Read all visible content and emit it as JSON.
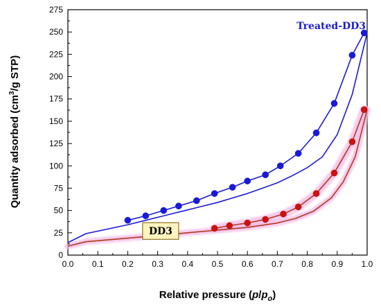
{
  "chart_data": {
    "type": "line",
    "title": "",
    "xlabel": "Relative pressure (p/po)",
    "xlabel_parts": {
      "prefix": "Relative pressure (",
      "p": "p",
      "slash": "/",
      "po_main": "p",
      "po_sub": "o",
      "suffix": ")"
    },
    "ylabel": "Quantity adsorbed (cm3/g STP)",
    "ylabel_parts": {
      "prefix": "Quantity adsorbed (cm",
      "sup": "3",
      "suffix": "/g STP)"
    },
    "xlim": [
      0.0,
      1.0
    ],
    "ylim": [
      0,
      275
    ],
    "x_ticks": [
      0.0,
      0.1,
      0.2,
      0.3,
      0.4,
      0.5,
      0.6,
      0.7,
      0.8,
      0.9,
      1.0
    ],
    "x_tick_labels": [
      "0.0",
      "0.1",
      "0.2",
      "0.3",
      "0.4",
      "0.5",
      "0.6",
      "0.7",
      "0.8",
      "0.9",
      "1.0"
    ],
    "y_ticks": [
      0,
      25,
      50,
      75,
      100,
      125,
      150,
      175,
      200,
      225,
      250,
      275
    ],
    "y_tick_labels": [
      "0",
      "25",
      "50",
      "75",
      "100",
      "125",
      "150",
      "175",
      "200",
      "225",
      "250",
      "275"
    ],
    "grid": false,
    "series": [
      {
        "name": "Treated-DD3",
        "color": "#1a1ad6",
        "marker_color": "#1a1ad6",
        "label_style": "plain",
        "label_at": [
          0.88,
          257
        ],
        "adsorption": {
          "x": [
            0.0,
            0.06,
            0.2,
            0.26,
            0.32,
            0.38,
            0.44,
            0.5,
            0.55,
            0.6,
            0.65,
            0.7,
            0.75,
            0.8,
            0.85,
            0.9,
            0.95,
            1.0
          ],
          "y": [
            14,
            24,
            34,
            39,
            44,
            49,
            54,
            59,
            64,
            69,
            75,
            81,
            89,
            98,
            110,
            135,
            180,
            249
          ]
        },
        "desorption_points": {
          "x": [
            0.2,
            0.26,
            0.32,
            0.37,
            0.43,
            0.49,
            0.55,
            0.6,
            0.66,
            0.71,
            0.77,
            0.83,
            0.89,
            0.95,
            0.99
          ],
          "y": [
            39,
            44,
            50,
            55,
            61,
            69,
            76,
            83,
            90,
            100,
            114,
            137,
            170,
            224,
            249
          ]
        }
      },
      {
        "name": "DD3",
        "color": "#b03a1e",
        "marker_color": "#cc1111",
        "label_style": "boxed",
        "label_at": [
          0.31,
          27
        ],
        "adsorption": {
          "x": [
            0.0,
            0.06,
            0.2,
            0.3,
            0.4,
            0.5,
            0.6,
            0.7,
            0.76,
            0.82,
            0.88,
            0.92,
            0.96,
            1.0
          ],
          "y": [
            10,
            15,
            19,
            22,
            25,
            28,
            31,
            36,
            41,
            49,
            64,
            82,
            110,
            163
          ]
        },
        "desorption_points": {
          "x": [
            0.49,
            0.54,
            0.6,
            0.66,
            0.72,
            0.77,
            0.83,
            0.89,
            0.95,
            0.99
          ],
          "y": [
            30,
            33,
            36,
            40,
            46,
            54,
            69,
            92,
            127,
            163
          ]
        }
      }
    ]
  }
}
